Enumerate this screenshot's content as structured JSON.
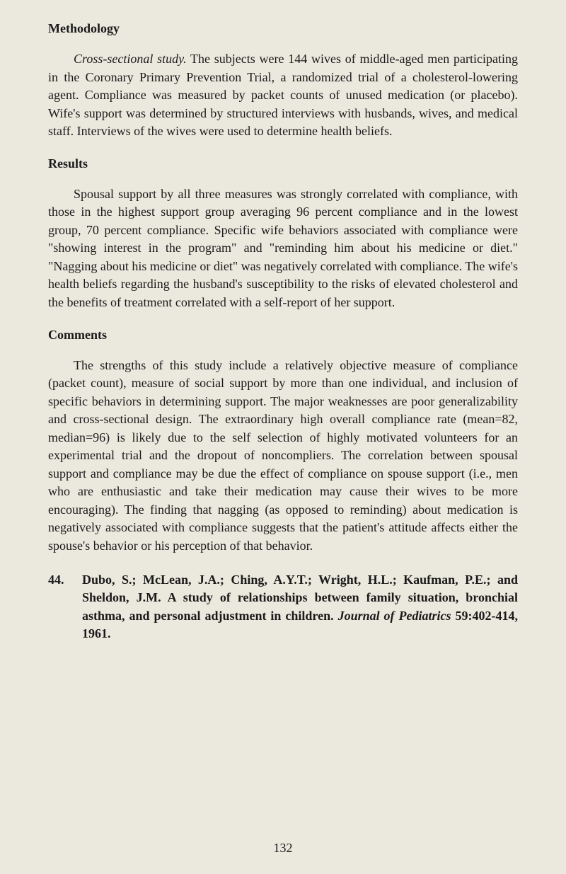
{
  "page": {
    "background_color": "#ebe8dd",
    "text_color": "#1a1a1a",
    "font_family": "Georgia, Times New Roman, serif",
    "base_fontsize": 18
  },
  "sections": {
    "methodology": {
      "heading": "Methodology",
      "para_lead_italic": "Cross-sectional study.",
      "para_body": "  The subjects were 144 wives of middle-aged men participating in the Coronary Primary Prevention Trial, a randomized trial of a cholesterol-lowering agent. Compliance was measured by packet counts of unused medication (or placebo). Wife's support was determined by structured interviews with husbands, wives, and medical staff. Interviews of the wives were used to determine health beliefs."
    },
    "results": {
      "heading": "Results",
      "para": "Spousal support by all three measures was strongly correlated with compliance, with those in the highest support group averaging 96 percent compliance and in the lowest group, 70 percent compliance. Specific wife behaviors associated with compliance were \"showing interest in the program\" and \"reminding him about his medicine or diet.\" \"Nagging about his medicine or diet\" was negatively correlated with compliance. The wife's health beliefs regarding the husband's susceptibility to the risks of elevated cholesterol and the benefits of treatment correlated with a self-report of her support."
    },
    "comments": {
      "heading": "Comments",
      "para": "The strengths of this study include a relatively objective measure of compliance (packet count), measure of social support by more than one individual, and inclusion of specific behaviors in determining support. The major weaknesses are poor generalizability and cross-sectional design. The extraordinary high overall compliance rate (mean=82, median=96) is likely due to the self selection of highly motivated volunteers for an experimental trial and the dropout of noncompliers. The correlation between spousal support and compliance may be due the effect of compliance on spouse support (i.e., men who are enthusiastic and take their medication may cause their wives to be more encouraging). The finding that nagging (as opposed to reminding) about medication is negatively associated with compliance suggests that the patient's attitude affects either the spouse's behavior or his perception of that behavior."
    }
  },
  "reference": {
    "number": "44.",
    "authors_title": "Dubo, S.; McLean, J.A.; Ching, A.Y.T.; Wright, H.L.; Kaufman, P.E.; and Sheldon, J.M.  A study of relationships between family situation, bronchial asthma, and personal adjustment in children. ",
    "journal": "Journal of Pediatrics",
    "citation": " 59:402-414, 1961."
  },
  "page_number": "132"
}
